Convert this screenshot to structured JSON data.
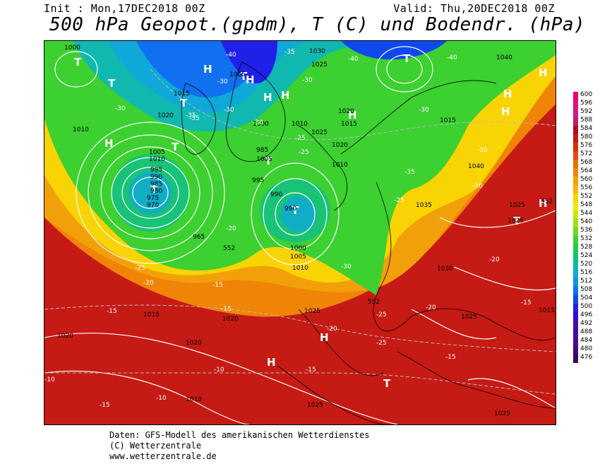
{
  "header": {
    "init": "Init : Mon,17DEC2018 00Z",
    "valid": "Valid: Thu,20DEC2018 00Z",
    "title": "500 hPa Geopot.(gpdm), T (C) und Bodendr. (hPa)"
  },
  "map": {
    "pressure_systems": [
      {
        "type": "T"
      },
      {
        "type": "T"
      },
      {
        "type": "T"
      },
      {
        "type": "T"
      },
      {
        "type": "T"
      },
      {
        "type": "T"
      },
      {
        "type": "T"
      },
      {
        "type": "T"
      },
      {
        "type": "T"
      },
      {
        "type": "T"
      },
      {
        "type": "T"
      },
      {
        "type": "H"
      },
      {
        "type": "H"
      },
      {
        "type": "H"
      },
      {
        "type": "H"
      },
      {
        "type": "H"
      },
      {
        "type": "H"
      },
      {
        "type": "H"
      },
      {
        "type": "H"
      },
      {
        "type": "H"
      },
      {
        "type": "H"
      },
      {
        "type": "H"
      },
      {
        "type": "H"
      }
    ],
    "isobar_labels": [
      "1000",
      "1030",
      "1025",
      "1040",
      "1005",
      "1010",
      "1015",
      "1020",
      "1005",
      "1010",
      "995",
      "990",
      "985",
      "980",
      "975",
      "970",
      "965",
      "990",
      "995",
      "1000",
      "1005",
      "1010",
      "985",
      "990",
      "1000",
      "1005",
      "1010",
      "1020",
      "1010",
      "1025",
      "1020",
      "1015",
      "1035",
      "1030",
      "1025",
      "1020",
      "1025",
      "1025",
      "1025",
      "1015",
      "1040",
      "1025",
      "1020",
      "1020",
      "1010",
      "1015",
      "1025",
      "1015"
    ],
    "temperature_labels": [
      "-40",
      "-35",
      "-40",
      "-40",
      "-30",
      "-35",
      "-30",
      "-35",
      "-30",
      "-30",
      "-30",
      "-25",
      "-25",
      "-30",
      "-35",
      "-30",
      "-30",
      "-25",
      "-20",
      "-30",
      "-25",
      "-20",
      "-15",
      "-15",
      "-15",
      "-20",
      "-25",
      "-25",
      "-20",
      "-20",
      "-15",
      "-15",
      "-10",
      "-10",
      "-10",
      "-15",
      "-15"
    ],
    "geopotential_labels": [
      "552",
      "552",
      "552"
    ]
  },
  "legend": {
    "levels": [
      "600",
      "596",
      "592",
      "588",
      "584",
      "580",
      "576",
      "572",
      "568",
      "564",
      "560",
      "556",
      "552",
      "548",
      "544",
      "540",
      "536",
      "532",
      "528",
      "524",
      "520",
      "516",
      "512",
      "508",
      "504",
      "500",
      "496",
      "492",
      "488",
      "484",
      "480",
      "476"
    ],
    "colors": [
      "#e8007a",
      "#e0107e",
      "#cc1a8c",
      "#b7206e",
      "#aa1020",
      "#c21a14",
      "#d8300a",
      "#e44c0a",
      "#ec6a08",
      "#f08406",
      "#f2a00a",
      "#f4b806",
      "#f8d404",
      "#f0e800",
      "#c8e800",
      "#a0e010",
      "#70d820",
      "#3cd030",
      "#20c850",
      "#14c080",
      "#10b8b0",
      "#10a8d8",
      "#1090e8",
      "#1070f0",
      "#1048f0",
      "#2020e8",
      "#3010c8",
      "#4010b0",
      "#5008a0",
      "#500888",
      "#480870",
      "#400860"
    ]
  },
  "footer": {
    "line1": "Daten: GFS-Modell des amerikanischen Wetterdienstes",
    "line2": "(C) Wetterzentrale",
    "line3": "www.wetterzentrale.de"
  }
}
